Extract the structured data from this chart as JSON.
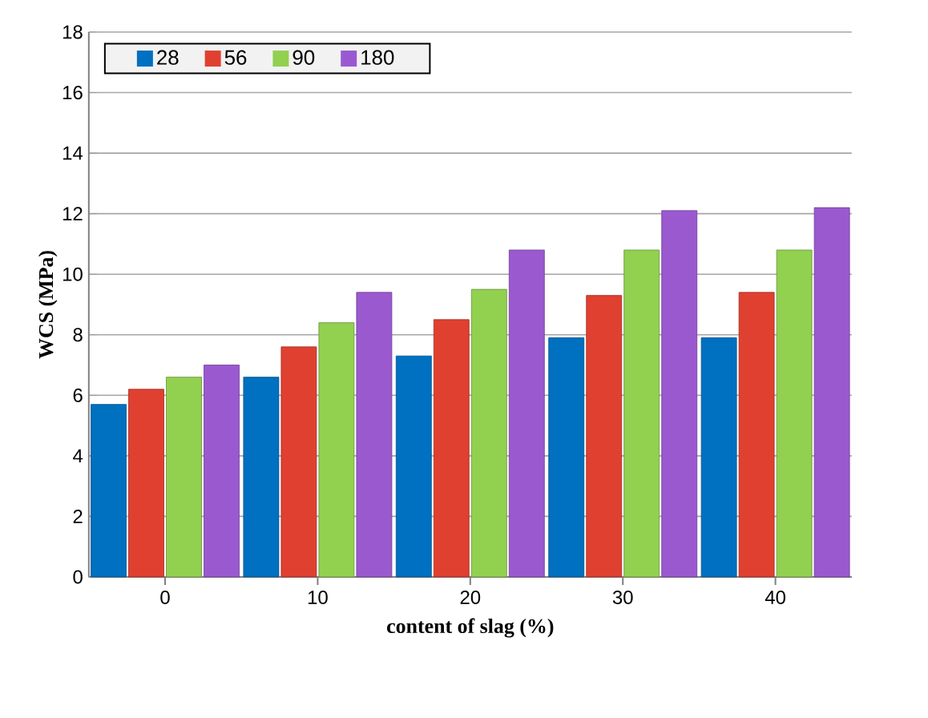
{
  "chart_data": {
    "type": "bar",
    "xlabel": "content of slag (%)",
    "ylabel": "WCS (MPa)",
    "categories": [
      "0",
      "10",
      "20",
      "30",
      "40"
    ],
    "series": [
      {
        "name": "28",
        "color": "#0070c0",
        "values": [
          5.7,
          6.6,
          7.3,
          7.9,
          7.9
        ]
      },
      {
        "name": "56",
        "color": "#e04030",
        "values": [
          6.2,
          7.6,
          8.5,
          9.3,
          9.4
        ]
      },
      {
        "name": "90",
        "color": "#92d050",
        "values": [
          6.6,
          8.4,
          9.5,
          10.8,
          10.8
        ]
      },
      {
        "name": "180",
        "color": "#9b59d0",
        "values": [
          7.0,
          9.4,
          10.8,
          12.1,
          12.2
        ]
      }
    ],
    "ylim": [
      0,
      18
    ],
    "yticks": [
      0,
      2,
      4,
      6,
      8,
      10,
      12,
      14,
      16,
      18
    ],
    "grid": "y",
    "legend": "top left"
  }
}
